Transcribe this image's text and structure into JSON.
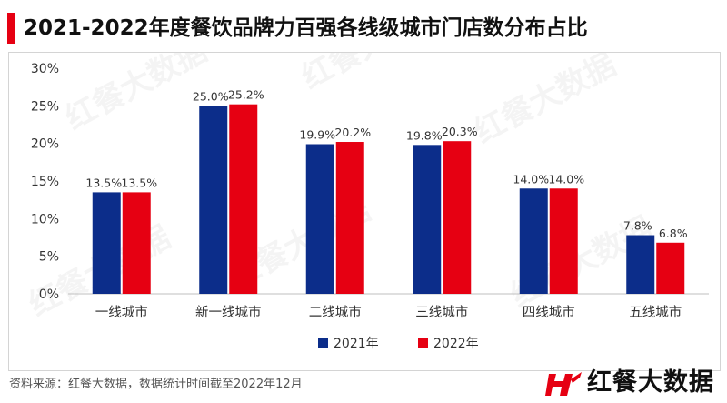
{
  "header": {
    "title": "2021-2022年度餐饮品牌力百强各线级城市门店数分布占比"
  },
  "footer": {
    "source": "资料来源：红餐大数据，数据统计时间截至2022年12月",
    "logo_text": "红餐大数据"
  },
  "watermark": "红餐大数据",
  "chart_data": {
    "type": "bar",
    "title": "2021-2022年度餐饮品牌力百强各线级城市门店数分布占比",
    "categories": [
      "一线城市",
      "新一线城市",
      "二线城市",
      "三线城市",
      "四线城市",
      "五线城市"
    ],
    "series": [
      {
        "name": "2021年",
        "color": "#0c2d8a",
        "values": [
          13.5,
          25.0,
          19.9,
          19.8,
          14.0,
          7.8
        ]
      },
      {
        "name": "2022年",
        "color": "#e60012",
        "values": [
          13.5,
          25.2,
          20.2,
          20.3,
          14.0,
          6.8
        ]
      }
    ],
    "ylim": [
      0,
      30
    ],
    "yticks": [
      "0%",
      "5%",
      "10%",
      "15%",
      "20%",
      "25%",
      "30%"
    ],
    "data_labels": [
      [
        "13.5%",
        "25.0%",
        "19.9%",
        "19.8%",
        "14.0%",
        "7.8%"
      ],
      [
        "13.5%",
        "25.2%",
        "20.2%",
        "20.3%",
        "14.0%",
        "6.8%"
      ]
    ],
    "grid": false,
    "legend_position": "bottom-center"
  }
}
